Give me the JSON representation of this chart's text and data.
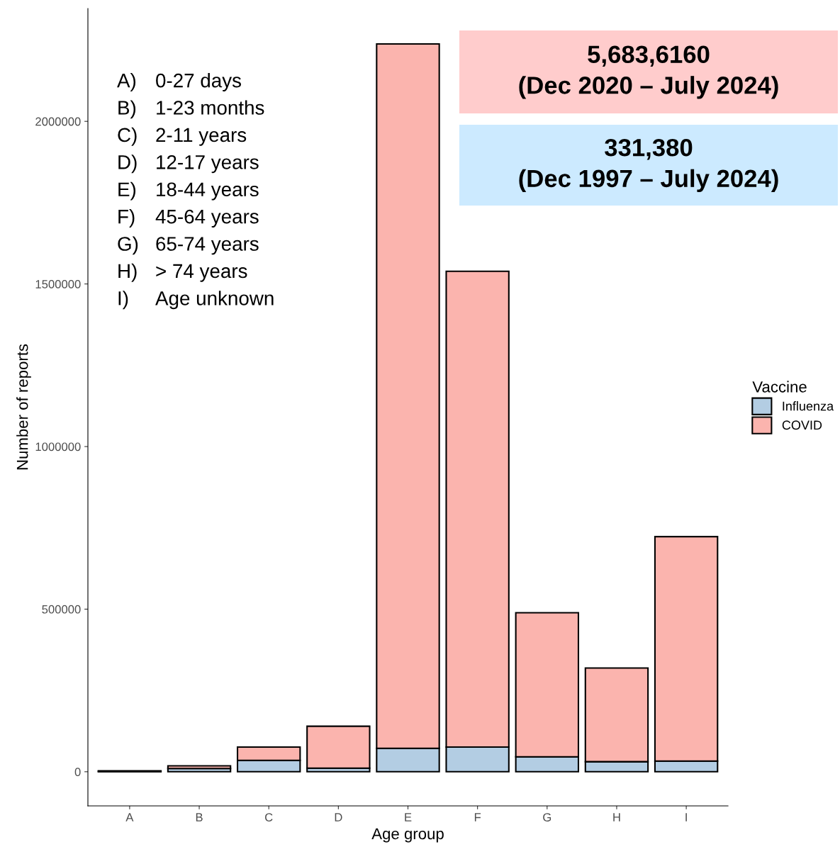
{
  "chart_data": {
    "type": "bar",
    "stacked": true,
    "xlabel": "Age group",
    "ylabel": "Number of reports",
    "legend_title": "Vaccine",
    "legend": "right",
    "categories": [
      "A",
      "B",
      "C",
      "D",
      "E",
      "F",
      "G",
      "H",
      "I"
    ],
    "series": [
      {
        "name": "Influenza",
        "color": "#b3cde3",
        "values": [
          1000,
          10000,
          35000,
          11000,
          72000,
          76000,
          46000,
          31000,
          33000
        ]
      },
      {
        "name": "COVID",
        "color": "#fbb4ae",
        "values": [
          2000,
          8000,
          41000,
          129000,
          2166000,
          1463000,
          443000,
          288000,
          690000
        ]
      }
    ],
    "ylim": [
      -105000,
      2347000
    ],
    "yticks": [
      0,
      500000,
      1000000,
      1500000,
      2000000
    ],
    "grid": false,
    "annotations": [
      "A) 0-27 days",
      "B) 1-23 months",
      "C) 2-11 years",
      "D) 12-17 years",
      "E) 18-44 years",
      "F) 45-64 years",
      "G) 65-74 years",
      "H) > 74 years",
      "I) Age unknown",
      "5,683,6160\n(Dec 2020 – July 2024)",
      "331,380\n(Dec 1997 – July 2024)"
    ]
  }
}
